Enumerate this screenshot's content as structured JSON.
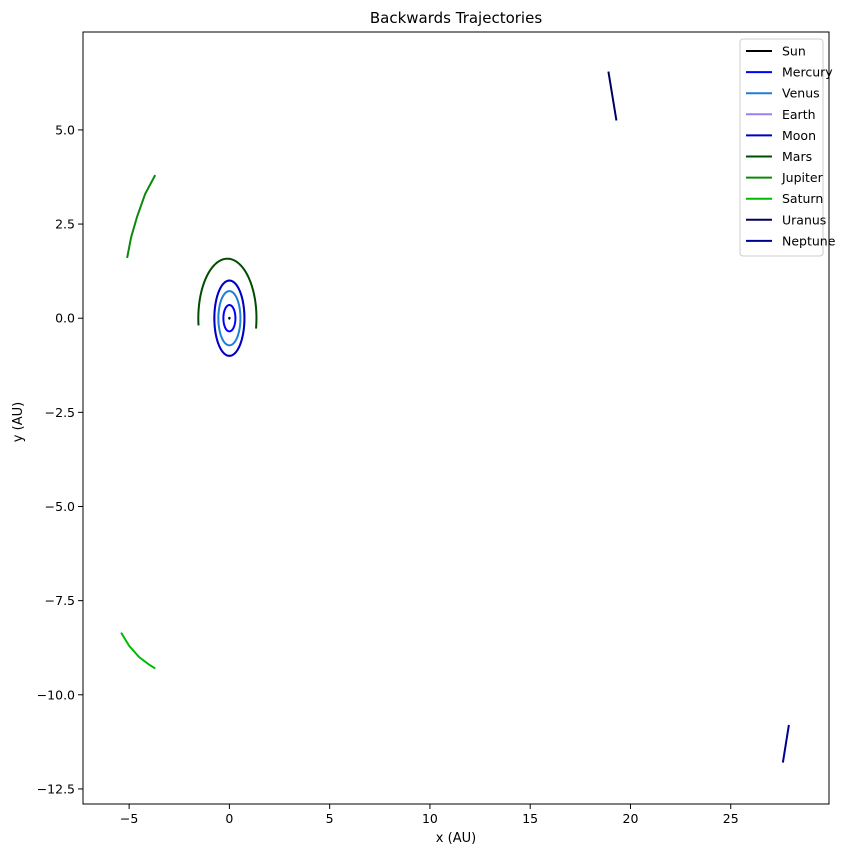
{
  "chart_data": {
    "type": "line",
    "title": "Backwards Trajectories",
    "xlabel": "x (AU)",
    "ylabel": "y (AU)",
    "xlim": [
      -7.3,
      29.9
    ],
    "ylim": [
      -12.9,
      7.6
    ],
    "xticks": [
      -5,
      0,
      5,
      10,
      15,
      20,
      25
    ],
    "xtick_labels": [
      "−5",
      "0",
      "5",
      "10",
      "15",
      "20",
      "25"
    ],
    "yticks": [
      5.0,
      2.5,
      0.0,
      -2.5,
      -5.0,
      -7.5,
      -10.0,
      -12.5
    ],
    "ytick_labels": [
      "5.0",
      "2.5",
      "0.0",
      "−2.5",
      "−5.0",
      "−7.5",
      "−10.0",
      "−12.5"
    ],
    "grid": false,
    "legend_position": "top-right",
    "series": [
      {
        "name": "Sun",
        "color": "#000000",
        "shape": "point",
        "cx": 0.0,
        "cy": 0.0,
        "rx": 0.01,
        "ry": 0.01
      },
      {
        "name": "Mercury",
        "color": "#0000ff",
        "shape": "ellipse",
        "cx": 0.0,
        "cy": 0.0,
        "rx": 0.3,
        "ry": 0.35
      },
      {
        "name": "Venus",
        "color": "#1f7fd6",
        "shape": "ellipse",
        "cx": 0.0,
        "cy": 0.0,
        "rx": 0.55,
        "ry": 0.72
      },
      {
        "name": "Earth",
        "color": "#9b80f0",
        "shape": "ellipse",
        "cx": 0.0,
        "cy": 0.0,
        "rx": 0.75,
        "ry": 1.0
      },
      {
        "name": "Moon",
        "color": "#0000c0",
        "shape": "ellipse",
        "cx": 0.0,
        "cy": 0.0,
        "rx": 0.75,
        "ry": 1.0
      },
      {
        "name": "Mars",
        "color": "#004d00",
        "shape": "arc",
        "cx": -0.1,
        "cy": 0.0,
        "rx": 1.45,
        "ry": 1.58,
        "t0": -10,
        "t1": 187
      },
      {
        "name": "Jupiter",
        "color": "#0a8a0a",
        "shape": "line",
        "points": [
          [
            -3.7,
            3.8
          ],
          [
            -4.2,
            3.3
          ],
          [
            -4.6,
            2.7
          ],
          [
            -4.9,
            2.15
          ],
          [
            -5.1,
            1.6
          ]
        ]
      },
      {
        "name": "Saturn",
        "color": "#00bb00",
        "shape": "line",
        "points": [
          [
            -5.4,
            -8.35
          ],
          [
            -5.0,
            -8.7
          ],
          [
            -4.5,
            -9.0
          ],
          [
            -4.0,
            -9.2
          ],
          [
            -3.7,
            -9.3
          ]
        ]
      },
      {
        "name": "Uranus",
        "color": "#000060",
        "shape": "line",
        "points": [
          [
            18.9,
            6.55
          ],
          [
            19.3,
            5.25
          ]
        ]
      },
      {
        "name": "Neptune",
        "color": "#000090",
        "shape": "line",
        "points": [
          [
            27.9,
            -10.8
          ],
          [
            27.6,
            -11.8
          ]
        ]
      }
    ]
  }
}
